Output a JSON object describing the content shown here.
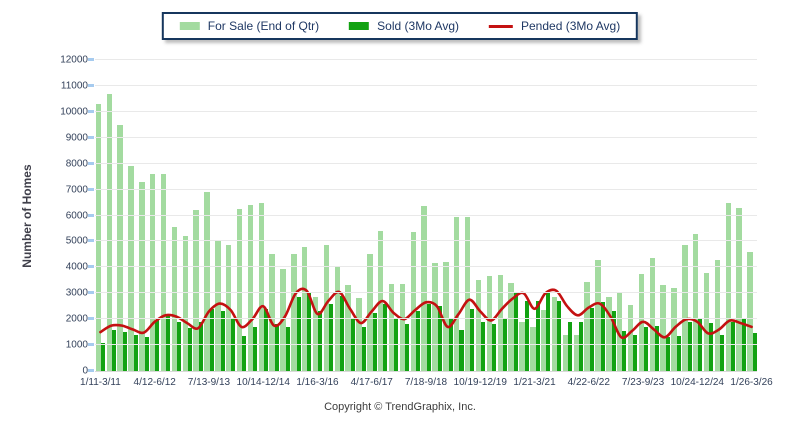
{
  "legend": {
    "items": [
      {
        "label": "For Sale (End of Qtr)",
        "color": "#A3DBA0",
        "swatch": "box"
      },
      {
        "label": "Sold (3Mo Avg)",
        "color": "#12A212",
        "swatch": "box"
      },
      {
        "label": "Pended (3Mo Avg)",
        "color": "#C41111",
        "swatch": "line"
      }
    ]
  },
  "footer": {
    "text": "Copyright © TrendGraphix, Inc."
  },
  "colors": {
    "grid": "#E9E9E9",
    "axis_line": "#D9D9D9",
    "tick_text": "#33415A",
    "legend_border": "#16365D",
    "y_tick_mark": "#A6CBEF",
    "for_sale": "#A3DBA0",
    "sold": "#12A212",
    "pended": "#C41111"
  },
  "chart_data": {
    "type": "bar",
    "title": "",
    "xlabel": "",
    "ylabel": "Number of Homes",
    "ylim": [
      0,
      12000
    ],
    "y_tick_step": 1000,
    "grid": "horizontal",
    "legend_position": "top",
    "n_points": 61,
    "x_tick_every": 5,
    "x_tick_labels": [
      "1/11-3/11",
      "4/12-6/12",
      "7/13-9/13",
      "10/14-12/14",
      "1/16-3/16",
      "4/17-6/17",
      "7/18-9/18",
      "10/19-12/19",
      "1/21-3/21",
      "4/22-6/22",
      "7/23-9/23",
      "10/24-12/24",
      "1/26-3/26"
    ],
    "series": [
      {
        "name": "For Sale (End of Qtr)",
        "type": "bar",
        "color": "#A3DBA0",
        "values": [
          10300,
          10700,
          9500,
          7900,
          7300,
          7600,
          7600,
          5550,
          5200,
          6200,
          6900,
          5050,
          4850,
          6250,
          6400,
          6500,
          4500,
          3950,
          4500,
          4800,
          2850,
          4850,
          4000,
          3300,
          2800,
          4500,
          5400,
          3350,
          3350,
          5350,
          6350,
          4150,
          4200,
          5950,
          5950,
          3500,
          3650,
          3700,
          3400,
          1900,
          1700,
          2350,
          2850,
          1400,
          1400,
          3450,
          4300,
          2850,
          3050,
          2550,
          3750,
          4350,
          3300,
          3200,
          4850,
          5300,
          3770,
          4280,
          6500,
          6300,
          4600
        ]
      },
      {
        "name": "Sold (3Mo Avg)",
        "type": "bar",
        "color": "#12A212",
        "values": [
          1100,
          1600,
          1500,
          1400,
          1300,
          1950,
          2150,
          1900,
          1650,
          1900,
          2400,
          2300,
          2050,
          1350,
          1700,
          2400,
          1800,
          1700,
          2850,
          3050,
          2300,
          2600,
          2900,
          2050,
          1700,
          2250,
          2600,
          2050,
          1800,
          2300,
          2600,
          2500,
          2050,
          1600,
          2400,
          1900,
          1800,
          2000,
          3000,
          2700,
          2700,
          3000,
          2700,
          1900,
          1900,
          2450,
          2650,
          2300,
          1550,
          1400,
          1700,
          1750,
          1300,
          1350,
          1900,
          2000,
          1850,
          1400,
          1900,
          2000,
          1450
        ]
      },
      {
        "name": "Pended (3Mo Avg)",
        "type": "line",
        "color": "#C41111",
        "values": [
          1500,
          1750,
          1750,
          1600,
          1480,
          1900,
          2150,
          2100,
          1850,
          1650,
          2300,
          2600,
          2350,
          1700,
          2000,
          2500,
          1750,
          2100,
          3000,
          3100,
          2200,
          2700,
          3050,
          2400,
          1850,
          2300,
          2700,
          2250,
          2000,
          2350,
          2650,
          2500,
          1700,
          2200,
          2750,
          2300,
          1950,
          2400,
          2800,
          3000,
          2400,
          3000,
          3100,
          2500,
          2150,
          2450,
          2600,
          2100,
          1300,
          1550,
          1900,
          1600,
          1300,
          1700,
          2000,
          1900,
          1450,
          1600,
          1950,
          1850,
          1700
        ]
      }
    ]
  }
}
